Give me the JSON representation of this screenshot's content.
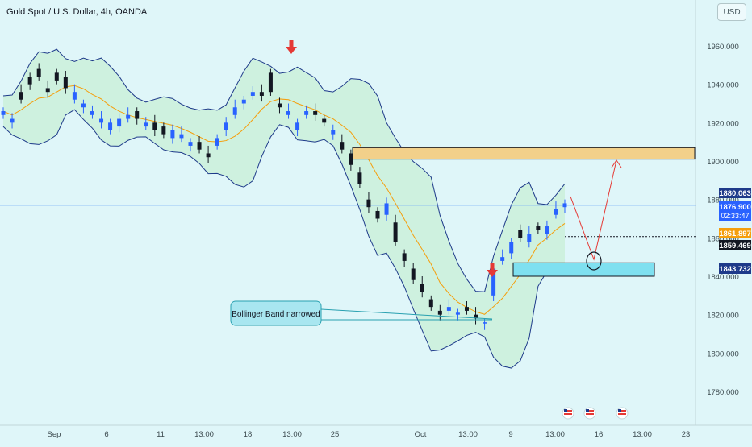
{
  "header": {
    "title": "Gold Spot / U.S. Dollar, 4h, OANDA",
    "currency": "USD"
  },
  "colors": {
    "background": "#dff6f9",
    "band_fill": "#c9f0d8",
    "band_line": "#1e3a8a",
    "middle_line": "#f59e0b",
    "candle_up": "#2962ff",
    "candle_down": "#131722",
    "zone_resistance": "#f2d08a",
    "zone_support": "#7fe0f0",
    "arrow_red": "#e53935",
    "callout_fill": "#a8e6f0",
    "callout_stroke": "#28a0b0"
  },
  "chart_data": {
    "type": "candlestick",
    "symbol": "Gold Spot / U.S. Dollar",
    "interval": "4h",
    "source": "OANDA",
    "ylim": [
      1772,
      1990
    ],
    "y_ticks": [
      1780,
      1800,
      1820,
      1840,
      1860,
      1880,
      1900,
      1920,
      1940,
      1960
    ],
    "y_tick_labels": [
      "1780.000",
      "1800.000",
      "1820.000",
      "1840.000",
      "1860.000",
      "1880.000",
      "1900.000",
      "1920.000",
      "1940.000",
      "1960.000"
    ],
    "x_labels": [
      {
        "label": "Sep",
        "pos": 67
      },
      {
        "label": "6",
        "pos": 132
      },
      {
        "label": "11",
        "pos": 199
      },
      {
        "label": "13:00",
        "pos": 253
      },
      {
        "label": "18",
        "pos": 307
      },
      {
        "label": "13:00",
        "pos": 362
      },
      {
        "label": "25",
        "pos": 415
      },
      {
        "label": "Oct",
        "pos": 521
      },
      {
        "label": "13:00",
        "pos": 580
      },
      {
        "label": "9",
        "pos": 633
      },
      {
        "label": "13:00",
        "pos": 688
      },
      {
        "label": "16",
        "pos": 742
      },
      {
        "label": "13:00",
        "pos": 796
      },
      {
        "label": "23",
        "pos": 850
      }
    ],
    "price_path": [
      [
        1924,
        1926
      ],
      [
        1920,
        1922
      ],
      [
        1936,
        1932
      ],
      [
        1944,
        1940
      ],
      [
        1948,
        1944
      ],
      [
        1938,
        1936
      ],
      [
        1946,
        1942
      ],
      [
        1944,
        1938
      ],
      [
        1932,
        1936
      ],
      [
        1928,
        1930
      ],
      [
        1924,
        1926
      ],
      [
        1920,
        1922
      ],
      [
        1916,
        1920
      ],
      [
        1918,
        1922
      ],
      [
        1922,
        1924
      ],
      [
        1926,
        1922
      ],
      [
        1918,
        1920
      ],
      [
        1920,
        1916
      ],
      [
        1918,
        1914
      ],
      [
        1912,
        1916
      ],
      [
        1912,
        1914
      ],
      [
        1908,
        1910
      ],
      [
        1910,
        1906
      ],
      [
        1904,
        1902
      ],
      [
        1908,
        1912
      ],
      [
        1916,
        1920
      ],
      [
        1924,
        1928
      ],
      [
        1930,
        1932
      ],
      [
        1934,
        1936
      ],
      [
        1936,
        1934
      ],
      [
        1946,
        1936
      ],
      [
        1930,
        1928
      ],
      [
        1924,
        1926
      ],
      [
        1916,
        1920
      ],
      [
        1924,
        1926
      ],
      [
        1926,
        1924
      ],
      [
        1922,
        1920
      ],
      [
        1914,
        1916
      ],
      [
        1910,
        1906
      ],
      [
        1904,
        1898
      ],
      [
        1894,
        1888
      ],
      [
        1880,
        1876
      ],
      [
        1874,
        1870
      ],
      [
        1872,
        1878
      ],
      [
        1868,
        1858
      ],
      [
        1852,
        1848
      ],
      [
        1844,
        1838
      ],
      [
        1836,
        1832
      ],
      [
        1828,
        1824
      ],
      [
        1822,
        1820
      ],
      [
        1822,
        1824
      ],
      [
        1820,
        1821
      ],
      [
        1824,
        1822
      ],
      [
        1820,
        1818
      ],
      [
        1816,
        1816
      ],
      [
        1830,
        1844
      ],
      [
        1848,
        1850
      ],
      [
        1852,
        1858
      ],
      [
        1864,
        1860
      ],
      [
        1858,
        1862
      ],
      [
        1866,
        1864
      ],
      [
        1862,
        1866
      ],
      [
        1872,
        1875
      ],
      [
        1876,
        1878
      ]
    ],
    "price_readout": [
      {
        "value": 1880.063,
        "label": "1880.063",
        "bg": "#1e3a8a"
      },
      {
        "value": 1876.9,
        "label": "1876.900",
        "bg": "#2962ff"
      },
      {
        "value": 1861.897,
        "label": "1861.897",
        "bg": "#f59e0b"
      },
      {
        "value": 1859.469,
        "label": "1859.469",
        "bg": "#131722"
      },
      {
        "value": 1843.732,
        "label": "1843.732",
        "bg": "#1e3a8a"
      }
    ],
    "countdown": "02:33:47",
    "zones": [
      {
        "name": "resistance-zone",
        "low": 1901,
        "high": 1907
      },
      {
        "name": "support-zone",
        "low": 1840,
        "high": 1847
      }
    ],
    "hline": 1861.897,
    "annotations": [
      {
        "text": "Bollinger Band narrowed"
      }
    ]
  }
}
